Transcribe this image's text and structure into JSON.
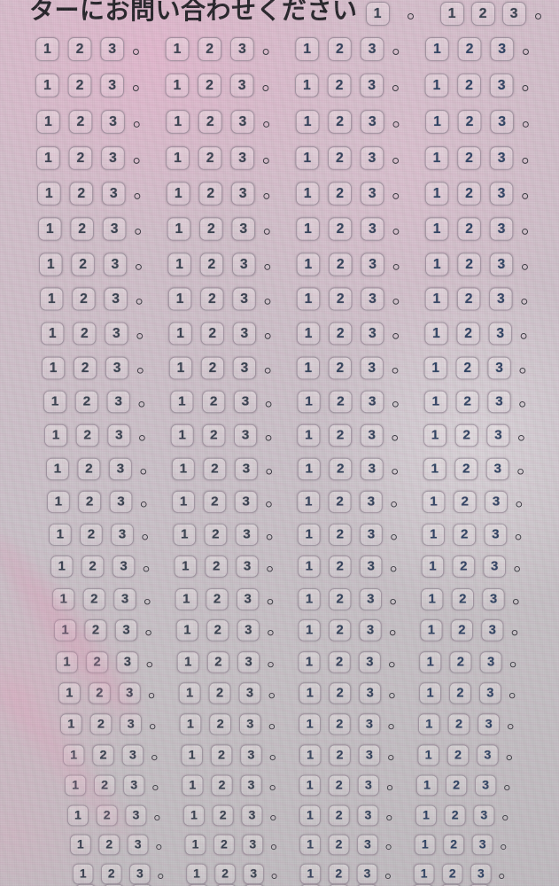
{
  "header": {
    "text": "ターにお問い合わせください",
    "single_button": "1",
    "separator": "。",
    "group_buttons": [
      "1",
      "2",
      "3"
    ]
  },
  "grid": {
    "full_rows": 26,
    "partial_rows": 1,
    "groups_per_row": 4,
    "button_labels": [
      "1",
      "2",
      "3"
    ],
    "separator": "。"
  },
  "colors": {
    "digit": "#35404e",
    "digit_navy": "#2c4263",
    "button_border": "#7a707e",
    "separator_mark": "#33353c",
    "background_pink": "#d8c3cf",
    "background_gray": "#c5c3c6"
  }
}
